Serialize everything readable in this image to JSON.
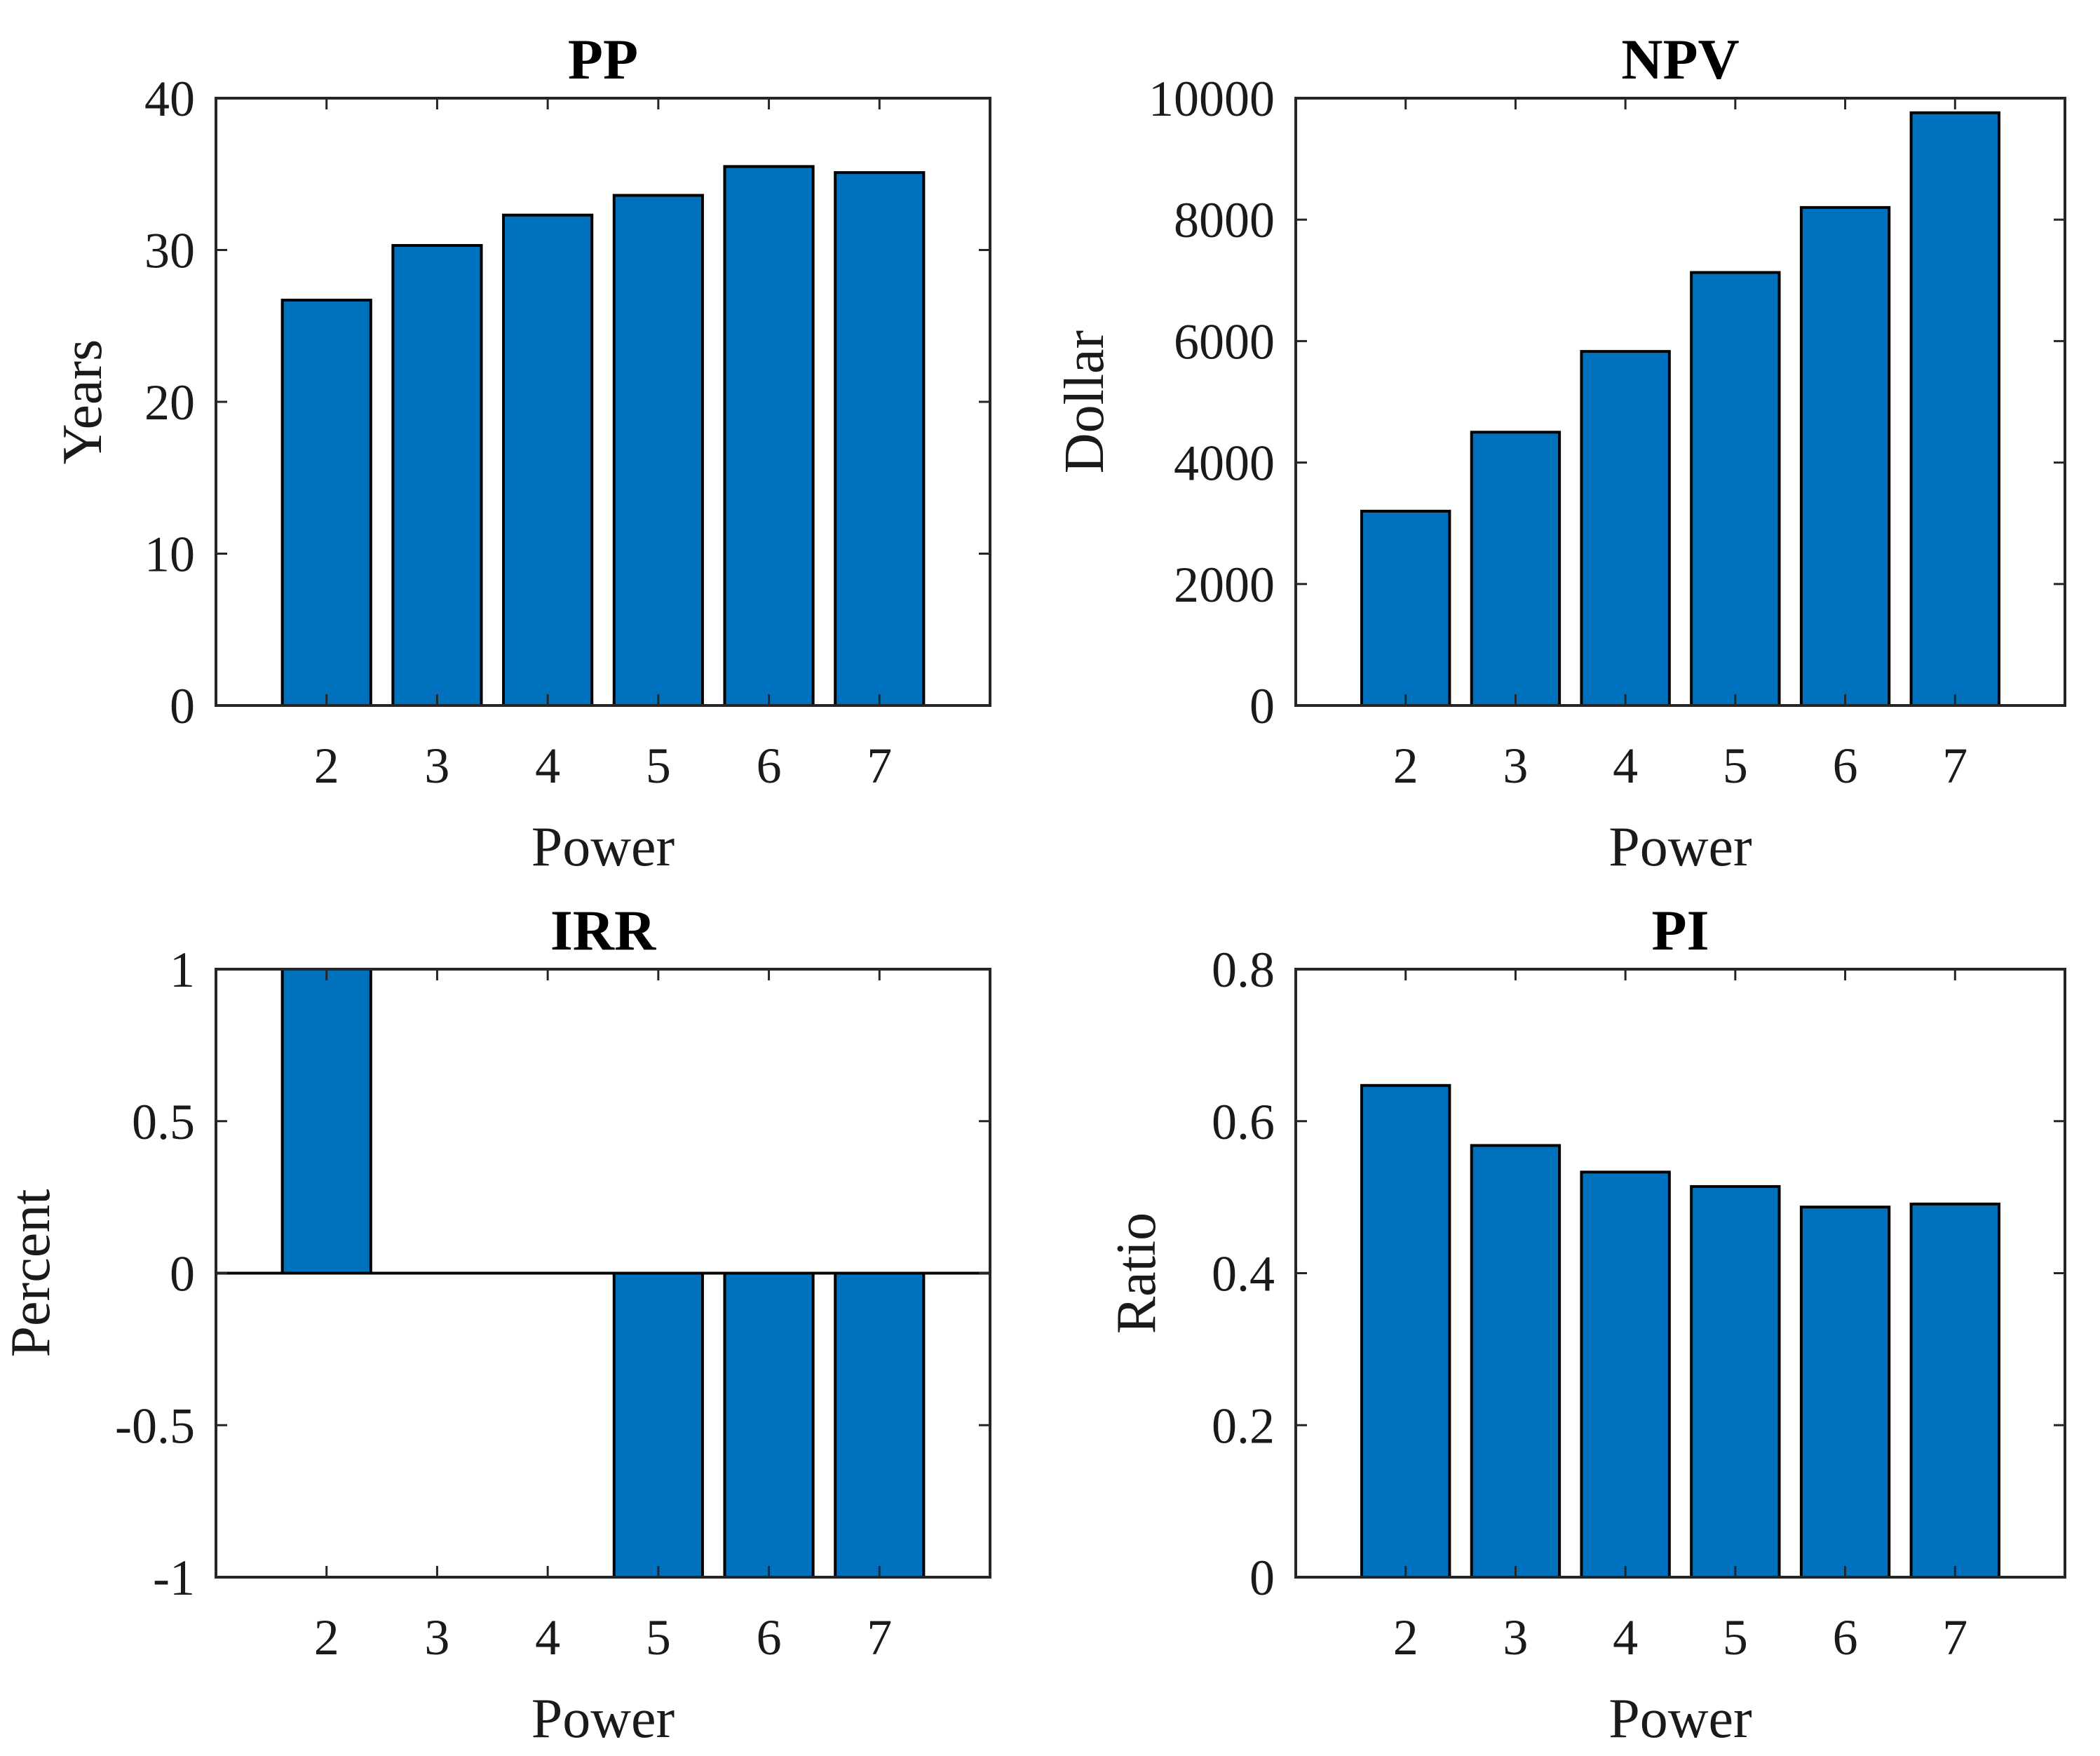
{
  "figure": {
    "bar_color": "#0072BD",
    "bar_edge_color": "#000000",
    "axis_color": "#262626"
  },
  "chart_data": [
    {
      "type": "bar",
      "title": "PP",
      "xlabel": "Power",
      "ylabel": "Years",
      "categories": [
        "2",
        "3",
        "4",
        "5",
        "6",
        "7"
      ],
      "values": [
        26.7,
        30.3,
        32.3,
        33.6,
        35.5,
        35.1
      ],
      "ylim": [
        0,
        40
      ],
      "yticks": [
        0,
        10,
        20,
        30,
        40
      ],
      "ytick_labels": [
        "0",
        "10",
        "20",
        "30",
        "40"
      ],
      "baseline": 0,
      "grid": false
    },
    {
      "type": "bar",
      "title": "NPV",
      "xlabel": "Power",
      "ylabel": "Dollar",
      "categories": [
        "2",
        "3",
        "4",
        "5",
        "6",
        "7"
      ],
      "values": [
        3200,
        4500,
        5830,
        7130,
        8200,
        9760
      ],
      "ylim": [
        0,
        10000
      ],
      "yticks": [
        0,
        2000,
        4000,
        6000,
        8000,
        10000
      ],
      "ytick_labels": [
        "0",
        "2000",
        "4000",
        "6000",
        "8000",
        "10000"
      ],
      "baseline": 0,
      "grid": false
    },
    {
      "type": "bar",
      "title": "IRR",
      "xlabel": "Power",
      "ylabel": "Percent",
      "categories": [
        "2",
        "3",
        "4",
        "5",
        "6",
        "7"
      ],
      "values": [
        1,
        0,
        0,
        -1,
        -1,
        -1
      ],
      "ylim": [
        -1,
        1
      ],
      "yticks": [
        -1,
        -0.5,
        0,
        0.5,
        1
      ],
      "ytick_labels": [
        "-1",
        "-0.5",
        "0",
        "0.5",
        "1"
      ],
      "baseline": 0,
      "grid": false
    },
    {
      "type": "bar",
      "title": "PI",
      "xlabel": "Power",
      "ylabel": "Ratio",
      "categories": [
        "2",
        "3",
        "4",
        "5",
        "6",
        "7"
      ],
      "values": [
        0.647,
        0.568,
        0.533,
        0.514,
        0.487,
        0.491
      ],
      "ylim": [
        0,
        0.8
      ],
      "yticks": [
        0,
        0.2,
        0.4,
        0.6,
        0.8
      ],
      "ytick_labels": [
        "0",
        "0.2",
        "0.4",
        "0.6",
        "0.8"
      ],
      "baseline": 0,
      "grid": false
    }
  ]
}
